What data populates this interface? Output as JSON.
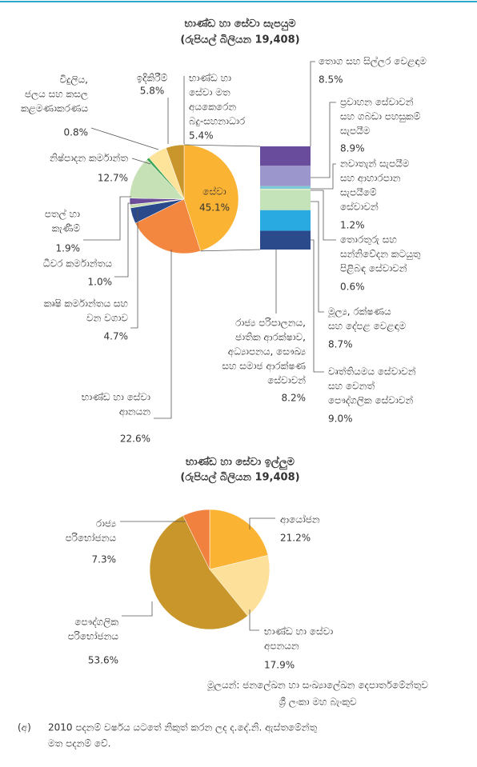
{
  "chart_data": [
    {
      "type": "pie",
      "title": [
        "භාණ්ඩ හා සේවා සැපයුම",
        "(රුපියල් බිලියන 19,408)"
      ],
      "categories": [
        [
          "සේවා"
        ],
        [
          "භාණ්ඩ හා සේවා",
          "ආනයන"
        ],
        [
          "කෘෂි කර්මාන්තය සහ",
          "වන වගාව"
        ],
        [
          "ධීවර කර්මාන්තය"
        ],
        [
          "පතල් හා",
          "කැණීම්"
        ],
        [
          "නිෂ්පාදන කර්මාන්ත"
        ],
        [
          "විදුලිය,",
          "ජලය සහ කසල",
          "කළමණාකරණය"
        ],
        [
          "ඉදිකිරීම්"
        ],
        [
          "භාණ්ඩ හා",
          "සේවා මත",
          "අයකෙරෙන",
          "බදු-සහනාධාර"
        ]
      ],
      "values": [
        45.1,
        22.6,
        4.7,
        1.0,
        1.9,
        12.7,
        0.8,
        5.8,
        5.4
      ],
      "value_labels": [
        "45.1%",
        "22.6%",
        "4.7%",
        "1.0%",
        "1.9%",
        "12.7%",
        "0.8%",
        "5.8%",
        "5.4%"
      ],
      "colors": [
        "#fbb334",
        "#f4873f",
        "#2b4a8c",
        "#c9ddb0",
        "#6b4c9a",
        "#c5e1b5",
        "#3aa655",
        "#fde49a",
        "#c9962b"
      ],
      "breakdown": {
        "type": "stacked-bar",
        "categories": [
          [
            "තොග සහ සිල්ලර වෙළඳාම"
          ],
          [
            "ප්‍රවාහන සේවාවන්",
            "සහ ගබඩා පහසුකම්",
            "සැපයීම"
          ],
          [
            "නවාතැන් සැපයීම",
            "සහ ආහාරපාන",
            "සැපයීමේ",
            "සේවාවන්"
          ],
          [
            "තොරතුරු සහ",
            "සන්නිවේදන කටයුතු",
            "පිළිබඳ සේවාවන්"
          ],
          [
            "මූල්‍ය, රක්ෂණය",
            "සහ දේපළ වෙළඳාම"
          ],
          [
            "වෘත්තියමය සේවාවන්",
            "සහ වෙනත්",
            "පෞද්ගලික සේවාවන්"
          ],
          [
            "රාජ්‍ය පරිපාලනය,",
            "ජාතික ආරක්ෂාව,",
            "අධ්‍යාපනය, සෞඛ්‍ය",
            "සහ සමාජ ආරක්ෂණ",
            "සේවාවන්"
          ]
        ],
        "values": [
          8.5,
          8.9,
          1.2,
          0.6,
          8.7,
          9.0,
          8.2
        ],
        "value_labels": [
          "8.5%",
          "8.9%",
          "1.2%",
          "0.6%",
          "8.7%",
          "9.0%",
          "8.2%"
        ],
        "colors": [
          "#6a4c9c",
          "#9b97cc",
          "#7ec9d6",
          "#d8ecc8",
          "#c5e3b8",
          "#29abe2",
          "#2b4a8c"
        ]
      }
    },
    {
      "type": "pie",
      "title": [
        "භාණ්ඩ හා සේවා ඉල්ලුම",
        "(රුපියල් බිලියන 19,408)"
      ],
      "categories": [
        [
          "ආයෝජන"
        ],
        [
          "භාණ්ඩ හා සේවා",
          "අපනයන"
        ],
        [
          "පෞද්ගලික",
          "පරිභෝජනය"
        ],
        [
          "රාජ්‍ය",
          "පරිභෝජනය"
        ]
      ],
      "values": [
        21.2,
        17.9,
        53.6,
        7.3
      ],
      "value_labels": [
        "21.2%",
        "17.9%",
        "53.6%",
        "7.3%"
      ],
      "colors": [
        "#fbb334",
        "#fde19a",
        "#c9962b",
        "#f0813e"
      ]
    }
  ],
  "source": [
    "මූලයන්: ජනලේඛන හා සංඛ්‍යාලේඛන දෙපාර්තමේන්තුව",
    "ශ්‍රී ලංකා මහ බැංකුව"
  ],
  "note": {
    "marker": "(අ)",
    "lines": [
      "2010 පදනම් වර්ෂය යටතේ නිකුත් කරන ලද ද.දේ.නි. ඇස්තමේන්තු",
      "මත පදනම් වේ."
    ]
  }
}
